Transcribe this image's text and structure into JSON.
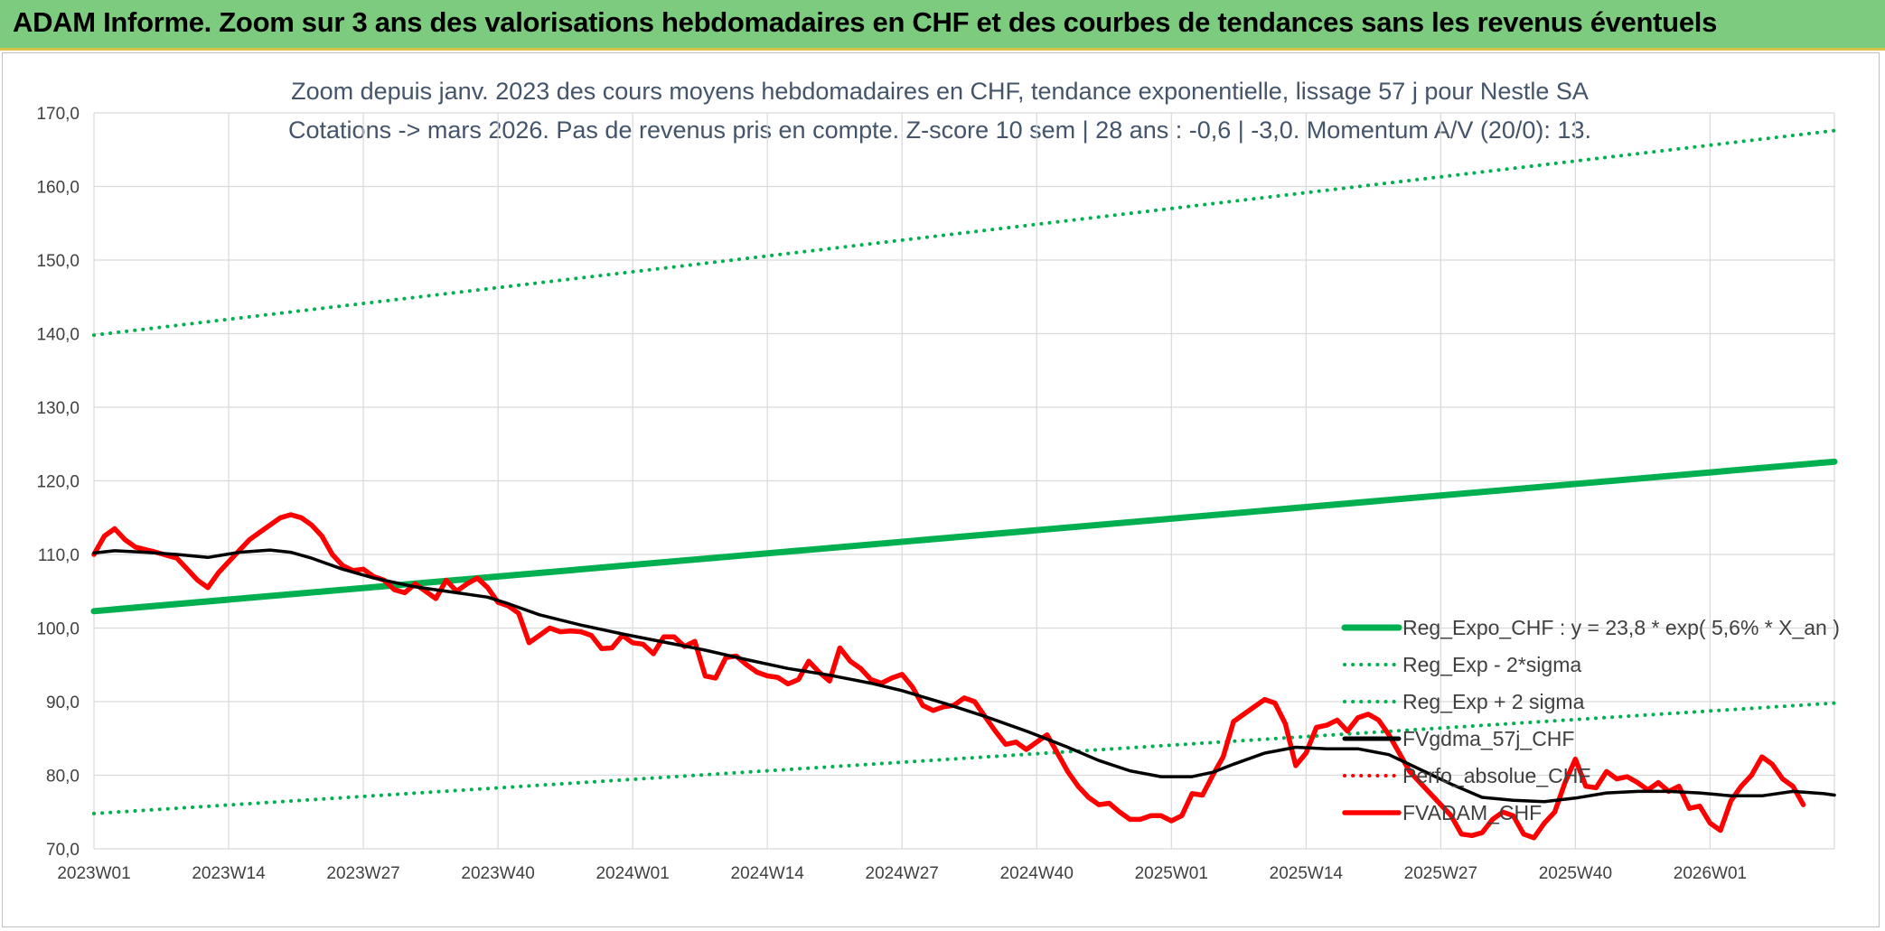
{
  "banner": {
    "title": "ADAM Informe. Zoom sur 3 ans des valorisations hebdomadaires en CHF et des courbes de tendances sans les revenus éventuels"
  },
  "chart_data": {
    "type": "line",
    "title_lines": [
      "Zoom depuis janv. 2023 des cours moyens hebdomadaires en CHF, tendance exponentielle, lissage 57 j pour Nestle SA",
      "Cotations -> mars 2026. Pas de revenus pris en compte. Z-score 10 sem | 28 ans : -0,6 | -3,0. Momentum A/V (20/0): 13."
    ],
    "ylim": [
      70,
      170
    ],
    "yticks": [
      "70,0",
      "80,0",
      "90,0",
      "100,0",
      "110,0",
      "120,0",
      "130,0",
      "140,0",
      "150,0",
      "160,0",
      "170,0"
    ],
    "xlim": [
      0,
      168
    ],
    "xticks": [
      {
        "x": 0,
        "label": "2023W01"
      },
      {
        "x": 13,
        "label": "2023W14"
      },
      {
        "x": 26,
        "label": "2023W27"
      },
      {
        "x": 39,
        "label": "2023W40"
      },
      {
        "x": 52,
        "label": "2024W01"
      },
      {
        "x": 65,
        "label": "2024W14"
      },
      {
        "x": 78,
        "label": "2024W27"
      },
      {
        "x": 91,
        "label": "2024W40"
      },
      {
        "x": 104,
        "label": "2025W01"
      },
      {
        "x": 117,
        "label": "2025W14"
      },
      {
        "x": 130,
        "label": "2025W27"
      },
      {
        "x": 143,
        "label": "2025W40"
      },
      {
        "x": 156,
        "label": "2026W01"
      }
    ],
    "grid": true,
    "legend_position": "bottom-right",
    "series": [
      {
        "name": "Reg_Expo_CHF : y = 23,8 * exp( 5,6% *  X_an )",
        "color": "#00b050",
        "style": "solid",
        "points": [
          [
            0,
            102.3
          ],
          [
            168,
            122.6
          ]
        ]
      },
      {
        "name": "Reg_Exp - 2*sigma",
        "color": "#00b050",
        "style": "dotted",
        "points": [
          [
            0,
            74.8
          ],
          [
            168,
            89.8
          ]
        ]
      },
      {
        "name": "Reg_Exp + 2 sigma",
        "color": "#00b050",
        "style": "dotted",
        "points": [
          [
            0,
            139.8
          ],
          [
            168,
            167.6
          ]
        ]
      },
      {
        "name": "FVgdma_57j_CHF",
        "color": "#000000",
        "style": "solid",
        "points": [
          [
            0,
            110.2
          ],
          [
            2,
            110.5
          ],
          [
            5,
            110.3
          ],
          [
            8,
            110.0
          ],
          [
            11,
            109.6
          ],
          [
            14,
            110.3
          ],
          [
            17,
            110.6
          ],
          [
            19,
            110.3
          ],
          [
            21,
            109.5
          ],
          [
            24,
            108.0
          ],
          [
            27,
            106.8
          ],
          [
            31,
            105.6
          ],
          [
            35,
            104.8
          ],
          [
            38,
            104.2
          ],
          [
            40,
            103.3
          ],
          [
            43,
            101.8
          ],
          [
            47,
            100.4
          ],
          [
            51,
            99.2
          ],
          [
            55,
            98.1
          ],
          [
            59,
            97.0
          ],
          [
            63,
            95.7
          ],
          [
            67,
            94.5
          ],
          [
            71,
            93.6
          ],
          [
            75,
            92.5
          ],
          [
            78,
            91.5
          ],
          [
            82,
            89.8
          ],
          [
            86,
            88.0
          ],
          [
            90,
            86.0
          ],
          [
            94,
            83.8
          ],
          [
            97,
            82.0
          ],
          [
            100,
            80.6
          ],
          [
            103,
            79.8
          ],
          [
            106,
            79.8
          ],
          [
            108,
            80.4
          ],
          [
            110,
            81.5
          ],
          [
            113,
            83.0
          ],
          [
            116,
            83.8
          ],
          [
            119,
            83.6
          ],
          [
            122,
            83.6
          ],
          [
            125,
            82.8
          ],
          [
            128,
            80.8
          ],
          [
            131,
            78.8
          ],
          [
            134,
            77.0
          ],
          [
            137,
            76.6
          ],
          [
            140,
            76.4
          ],
          [
            143,
            76.9
          ],
          [
            146,
            77.6
          ],
          [
            149,
            77.8
          ],
          [
            152,
            77.8
          ],
          [
            155,
            77.6
          ],
          [
            158,
            77.2
          ],
          [
            161,
            77.2
          ],
          [
            164,
            77.8
          ],
          [
            167,
            77.5
          ],
          [
            168,
            77.3
          ]
        ]
      },
      {
        "name": "Perfo_absolue_CHF",
        "color": "#ff0000",
        "style": "dotted",
        "points": []
      },
      {
        "name": "FVADAM_CHF",
        "color": "#ff0000",
        "style": "solid",
        "points": [
          [
            0,
            110.0
          ],
          [
            1,
            112.5
          ],
          [
            2,
            113.5
          ],
          [
            3,
            112.0
          ],
          [
            4,
            111.0
          ],
          [
            6,
            110.3
          ],
          [
            8,
            109.5
          ],
          [
            9,
            108.0
          ],
          [
            10,
            106.5
          ],
          [
            11,
            105.5
          ],
          [
            12,
            107.5
          ],
          [
            13,
            109.0
          ],
          [
            14,
            110.5
          ],
          [
            15,
            112.0
          ],
          [
            16,
            113.0
          ],
          [
            17,
            114.0
          ],
          [
            18,
            115.0
          ],
          [
            19,
            115.4
          ],
          [
            20,
            115.0
          ],
          [
            21,
            114.0
          ],
          [
            22,
            112.5
          ],
          [
            23,
            110.0
          ],
          [
            24,
            108.5
          ],
          [
            25,
            107.8
          ],
          [
            26,
            108.0
          ],
          [
            27,
            107.0
          ],
          [
            28,
            106.5
          ],
          [
            29,
            105.2
          ],
          [
            30,
            104.8
          ],
          [
            31,
            106.0
          ],
          [
            32,
            105.0
          ],
          [
            33,
            104.0
          ],
          [
            34,
            106.5
          ],
          [
            35,
            105.0
          ],
          [
            36,
            106.0
          ],
          [
            37,
            106.8
          ],
          [
            38,
            105.5
          ],
          [
            39,
            103.5
          ],
          [
            40,
            103.0
          ],
          [
            41,
            102.0
          ],
          [
            42,
            98.0
          ],
          [
            43,
            99.0
          ],
          [
            44,
            100.0
          ],
          [
            45,
            99.5
          ],
          [
            46,
            99.6
          ],
          [
            47,
            99.5
          ],
          [
            48,
            99.0
          ],
          [
            49,
            97.2
          ],
          [
            50,
            97.3
          ],
          [
            51,
            99.0
          ],
          [
            52,
            98.0
          ],
          [
            53,
            97.8
          ],
          [
            54,
            96.5
          ],
          [
            55,
            98.8
          ],
          [
            56,
            98.8
          ],
          [
            57,
            97.5
          ],
          [
            58,
            98.2
          ],
          [
            59,
            93.5
          ],
          [
            60,
            93.2
          ],
          [
            61,
            96.0
          ],
          [
            62,
            96.2
          ],
          [
            63,
            95.0
          ],
          [
            64,
            94.0
          ],
          [
            65,
            93.5
          ],
          [
            66,
            93.3
          ],
          [
            67,
            92.4
          ],
          [
            68,
            93.0
          ],
          [
            69,
            95.5
          ],
          [
            70,
            94.0
          ],
          [
            71,
            92.8
          ],
          [
            72,
            97.3
          ],
          [
            73,
            95.5
          ],
          [
            74,
            94.5
          ],
          [
            75,
            93.0
          ],
          [
            76,
            92.5
          ],
          [
            77,
            93.2
          ],
          [
            78,
            93.7
          ],
          [
            79,
            92.0
          ],
          [
            80,
            89.5
          ],
          [
            81,
            88.8
          ],
          [
            82,
            89.3
          ],
          [
            83,
            89.5
          ],
          [
            84,
            90.5
          ],
          [
            85,
            90.0
          ],
          [
            86,
            88.0
          ],
          [
            87,
            86.0
          ],
          [
            88,
            84.2
          ],
          [
            89,
            84.5
          ],
          [
            90,
            83.5
          ],
          [
            91,
            84.5
          ],
          [
            92,
            85.5
          ],
          [
            93,
            83.0
          ],
          [
            94,
            80.5
          ],
          [
            95,
            78.5
          ],
          [
            96,
            77.0
          ],
          [
            97,
            76.0
          ],
          [
            98,
            76.2
          ],
          [
            99,
            75.0
          ],
          [
            100,
            74.0
          ],
          [
            101,
            74.0
          ],
          [
            102,
            74.5
          ],
          [
            103,
            74.5
          ],
          [
            104,
            73.8
          ],
          [
            105,
            74.5
          ],
          [
            106,
            77.5
          ],
          [
            107,
            77.3
          ],
          [
            108,
            80.0
          ],
          [
            109,
            82.5
          ],
          [
            110,
            87.3
          ],
          [
            111,
            88.3
          ],
          [
            112,
            89.3
          ],
          [
            113,
            90.3
          ],
          [
            114,
            89.8
          ],
          [
            115,
            87.0
          ],
          [
            116,
            81.3
          ],
          [
            117,
            83.0
          ],
          [
            118,
            86.5
          ],
          [
            119,
            86.8
          ],
          [
            120,
            87.5
          ],
          [
            121,
            86.0
          ],
          [
            122,
            87.8
          ],
          [
            123,
            88.3
          ],
          [
            124,
            87.5
          ],
          [
            125,
            85.5
          ],
          [
            126,
            83.0
          ],
          [
            127,
            80.5
          ],
          [
            128,
            79.0
          ],
          [
            129,
            77.5
          ],
          [
            130,
            76.0
          ],
          [
            131,
            74.5
          ],
          [
            132,
            72.0
          ],
          [
            133,
            71.8
          ],
          [
            134,
            72.2
          ],
          [
            135,
            74.0
          ],
          [
            136,
            75.0
          ],
          [
            137,
            74.5
          ],
          [
            138,
            72.0
          ],
          [
            139,
            71.5
          ],
          [
            140,
            73.5
          ],
          [
            141,
            75.0
          ],
          [
            142,
            79.0
          ],
          [
            143,
            82.2
          ],
          [
            144,
            78.5
          ],
          [
            145,
            78.3
          ],
          [
            146,
            80.5
          ],
          [
            147,
            79.5
          ],
          [
            148,
            79.8
          ],
          [
            149,
            79.0
          ],
          [
            150,
            78.0
          ],
          [
            151,
            79.0
          ],
          [
            152,
            77.8
          ],
          [
            153,
            78.5
          ],
          [
            154,
            75.5
          ],
          [
            155,
            75.8
          ],
          [
            156,
            73.5
          ],
          [
            157,
            72.5
          ],
          [
            158,
            76.5
          ],
          [
            159,
            78.5
          ],
          [
            160,
            80.0
          ],
          [
            161,
            82.5
          ],
          [
            162,
            81.5
          ],
          [
            163,
            79.5
          ],
          [
            164,
            78.5
          ],
          [
            165,
            76.0
          ]
        ]
      }
    ]
  }
}
